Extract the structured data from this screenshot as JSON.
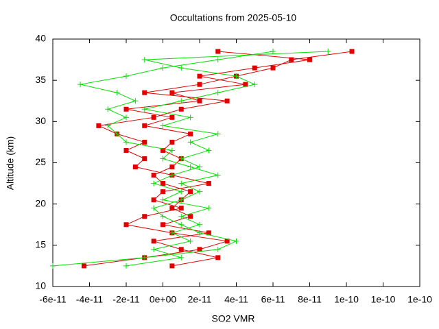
{
  "chart_data": {
    "type": "line",
    "title": "Occultations from 2025-05-10",
    "xlabel": "SO2 VMR",
    "ylabel": "Altitude (km)",
    "xlim": [
      -6e-11,
      1.4e-10
    ],
    "xticks": [
      -6e-11,
      -4e-11,
      -2e-11,
      {
        "value": 0,
        "label": "0e+00"
      },
      2e-11,
      4e-11,
      6e-11,
      8e-11,
      1e-10,
      {
        "value": 1.2e-10,
        "label": "1e-10"
      },
      {
        "value": 1.4e-10,
        "label": "1e-10"
      }
    ],
    "ylim": [
      10,
      40
    ],
    "yticks": [
      10,
      15,
      20,
      25,
      30,
      35,
      40
    ],
    "y": [
      12.5,
      13.5,
      14.5,
      15.5,
      16.5,
      17.5,
      18.5,
      19.5,
      20.5,
      21.5,
      22.5,
      23.5,
      24.5,
      25.5,
      26.5,
      27.5,
      28.5,
      29.5,
      30.5,
      31.5,
      32.5,
      33.5,
      34.5,
      35.5,
      36.5,
      37.5,
      38.5
    ],
    "series": [
      {
        "color": "#e00000",
        "marker": "square",
        "values": [
          -4.3e-11,
          -1e-11,
          2e-11,
          3.5e-11,
          5e-12,
          -2e-11,
          -1e-11,
          1e-11,
          -5e-12,
          0,
          2.5e-11,
          5e-12,
          -1.5e-11,
          -1e-11,
          -2e-11,
          -1e-11,
          -2.5e-11,
          -3.5e-11,
          -5e-12,
          1e-11,
          3.5e-11,
          -1e-11,
          2e-11,
          4e-11,
          6e-11,
          7e-11,
          1.03e-10
        ]
      },
      {
        "color": "#e00000",
        "marker": "square",
        "values": [
          5e-12,
          3e-11,
          1e-11,
          -5e-12,
          2.5e-11,
          0,
          1.5e-11,
          5e-12,
          1e-11,
          1.5e-11,
          0,
          -5e-12,
          5e-12,
          1e-11,
          0,
          5e-12,
          1.5e-11,
          -1e-11,
          5e-12,
          -2e-11,
          2e-11,
          5e-12,
          4.5e-11,
          2e-11,
          5e-11,
          8e-11,
          3e-11
        ]
      },
      {
        "color": "#00e000",
        "marker": "plus",
        "values": [
          -6e-11,
          -1e-11,
          3e-11,
          4e-11,
          2e-11,
          1e-11,
          0,
          -5e-12,
          1e-11,
          2e-11,
          1e-11,
          3e-11,
          1.5e-11,
          0,
          5e-12,
          -2e-11,
          -2.5e-11,
          -3e-11,
          -2e-11,
          -3e-11,
          -1.5e-11,
          -2.5e-11,
          -4.5e-11,
          -2e-11,
          0,
          3e-11,
          6e-11
        ]
      },
      {
        "color": "#00e000",
        "marker": "plus",
        "values": [
          -2e-11,
          1e-11,
          -5e-12,
          1.5e-11,
          5e-12,
          2e-11,
          1e-11,
          2.5e-11,
          0,
          1e-11,
          -5e-12,
          5e-12,
          2e-11,
          1e-11,
          2.5e-11,
          1.5e-11,
          3e-11,
          0,
          1.5e-11,
          -1e-11,
          1e-11,
          3e-11,
          5e-11,
          4e-11,
          1e-11,
          -1e-11,
          9e-11
        ]
      }
    ]
  }
}
